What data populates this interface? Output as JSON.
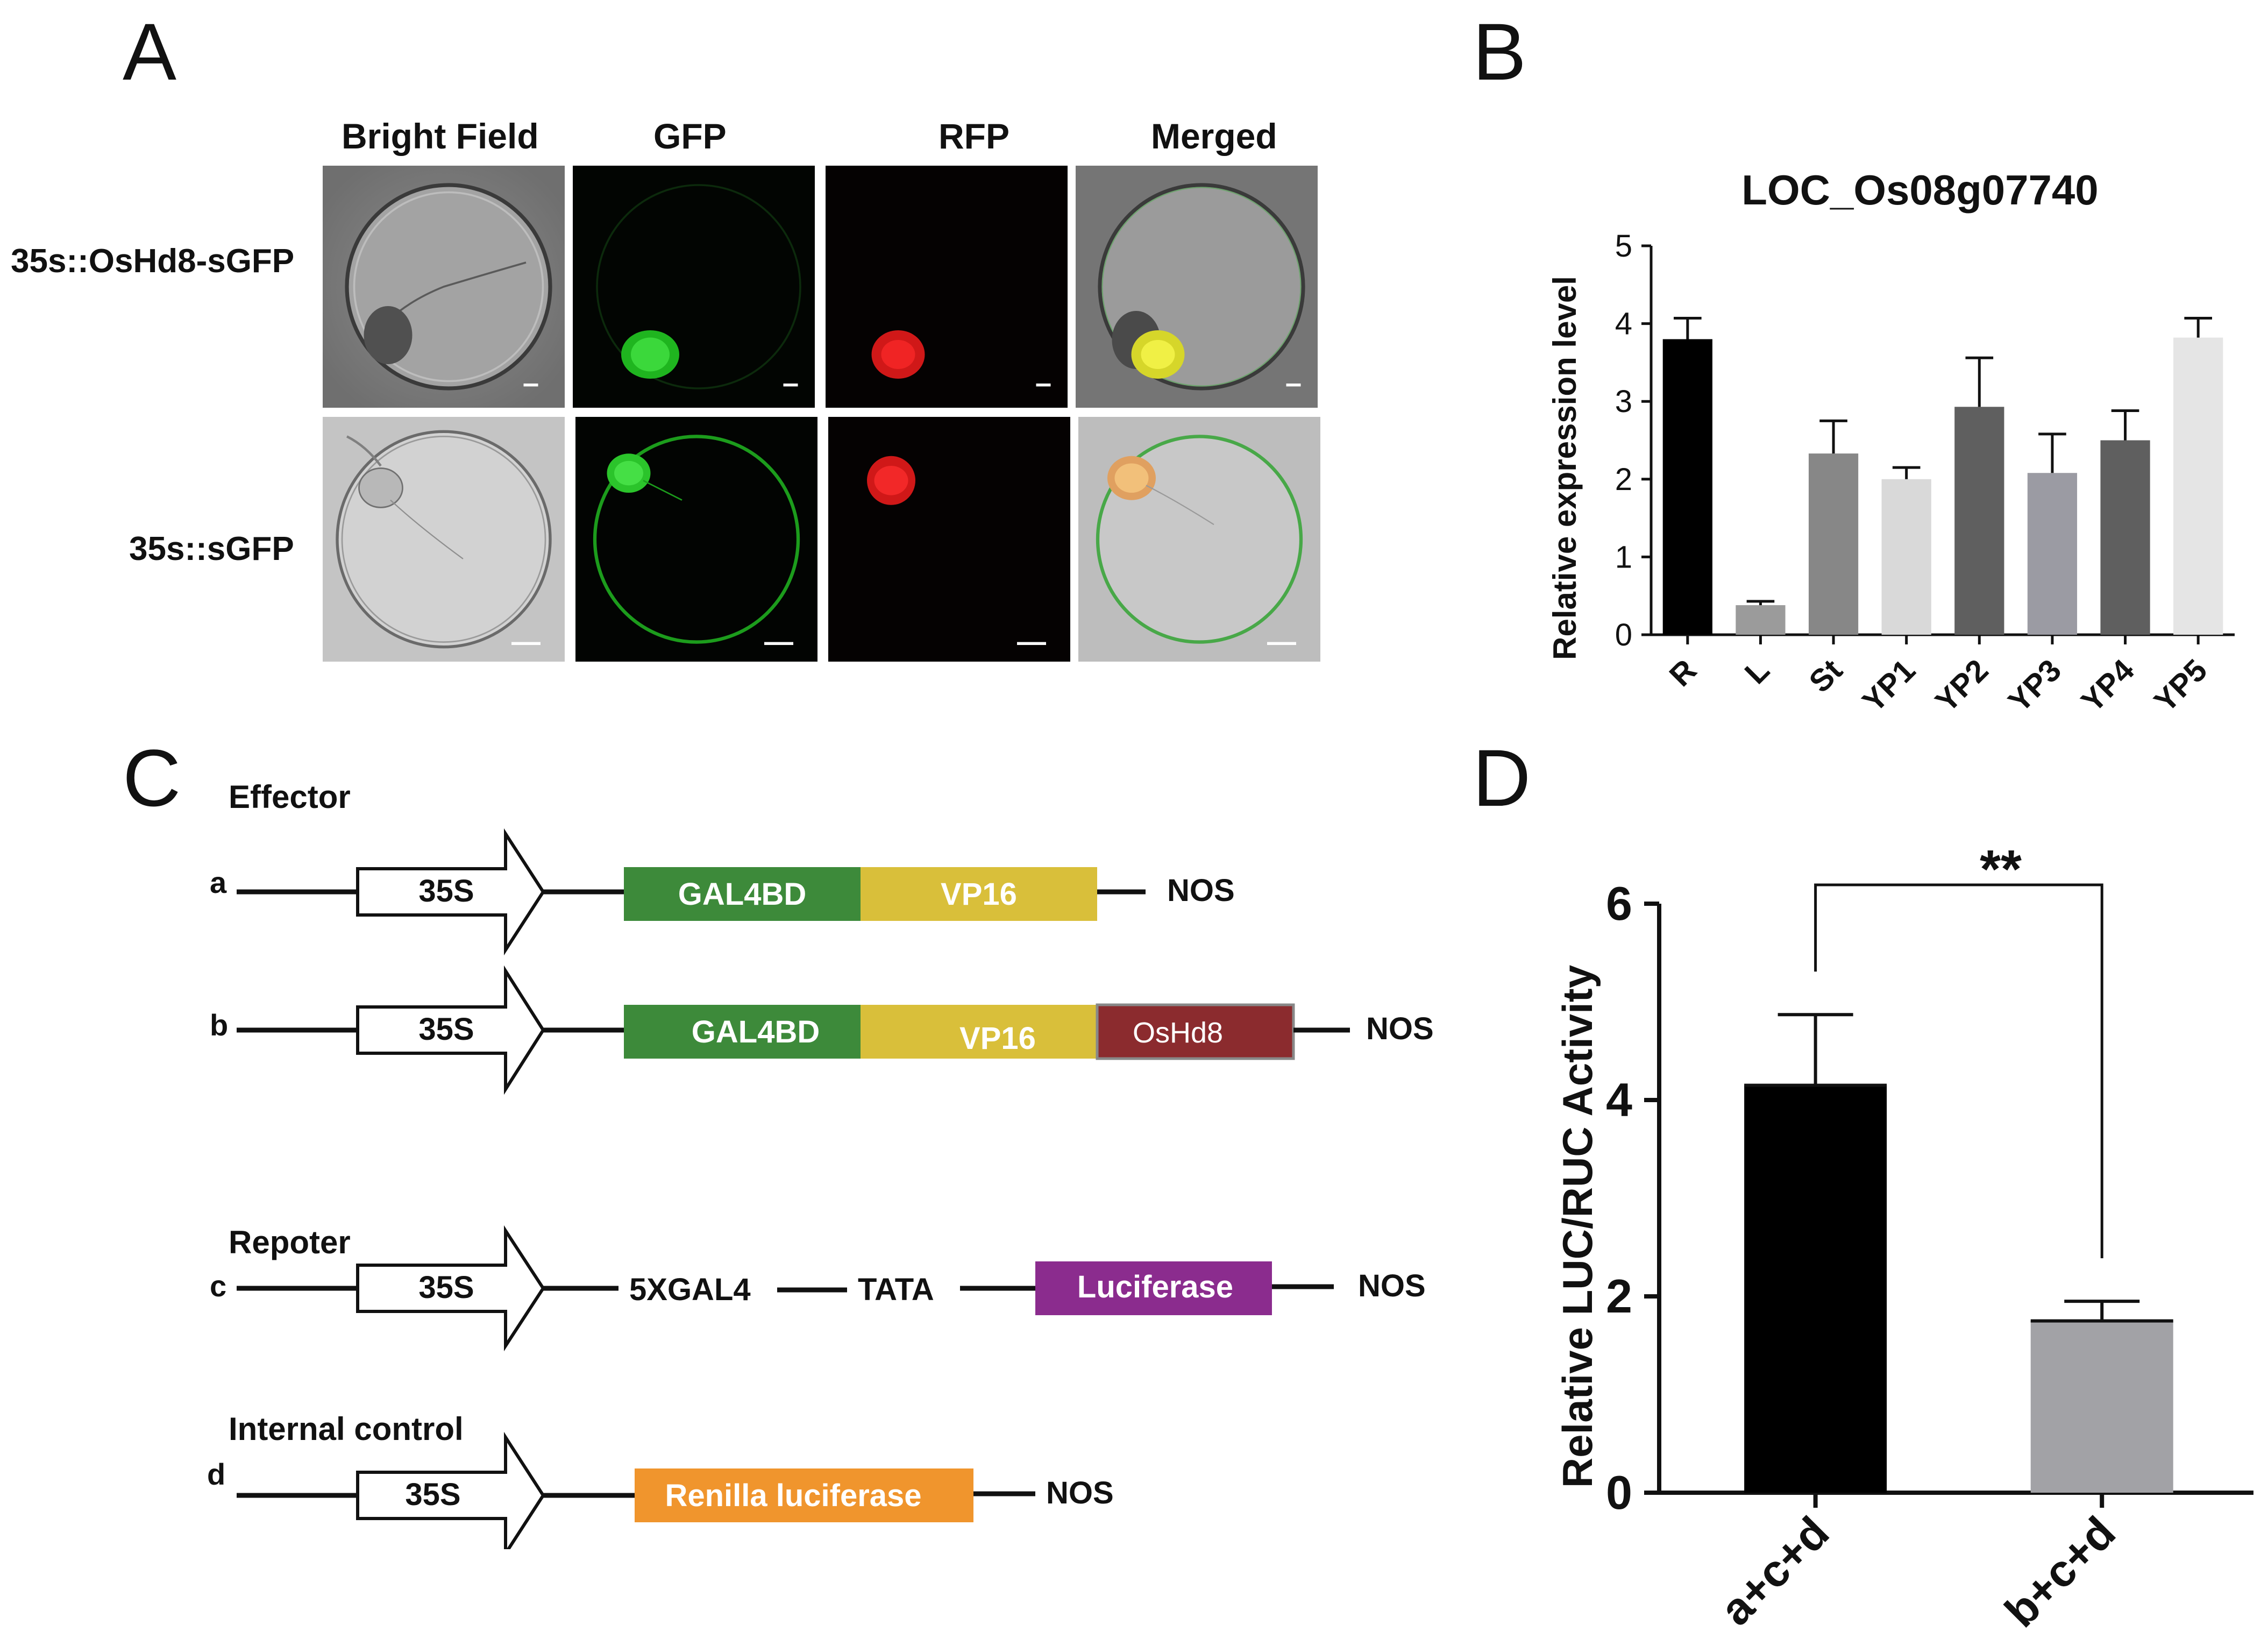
{
  "panels": {
    "a": "A",
    "b": "B",
    "c": "C",
    "d": "D"
  },
  "panelA": {
    "columns": [
      "Bright Field",
      "GFP",
      "RFP",
      "Merged"
    ],
    "rows": [
      "35s::OsHd8-sGFP",
      "35s::sGFP"
    ]
  },
  "panelC": {
    "effector_title": "Effector",
    "reporter_title": "Repoter",
    "control_title": "Internal control",
    "promoter": "35S",
    "terminator": "NOS",
    "row_labels": {
      "a": "a",
      "b": "b",
      "c": "c",
      "d": "d"
    },
    "gal4bd": "GAL4BD",
    "vp16": "VP16",
    "oshd8": "OsHd8",
    "gal4_element": "5XGAL4",
    "tata": "TATA",
    "luciferase": "Luciferase",
    "renilla": "Renilla luciferase",
    "colors": {
      "gal4bd": "#3d8a3a",
      "vp16": "#d9bf3a",
      "oshd8": "#8b2b2e",
      "luciferase": "#8b2c8e",
      "renilla": "#f0952d"
    }
  },
  "chart_data": [
    {
      "type": "bar",
      "title": "LOC_Os08g07740",
      "xlabel": "",
      "ylabel": "Relative expression level",
      "ylim": [
        0,
        5
      ],
      "yticks": [
        0,
        1,
        2,
        3,
        4,
        5
      ],
      "categories": [
        "R",
        "L",
        "St",
        "YP1",
        "YP2",
        "YP3",
        "YP4",
        "YP5"
      ],
      "values": [
        3.8,
        0.38,
        2.33,
        2.0,
        2.93,
        2.08,
        2.5,
        3.82
      ],
      "errors": [
        0.27,
        0.05,
        0.42,
        0.15,
        0.63,
        0.5,
        0.38,
        0.25
      ],
      "colors": [
        "#000000",
        "#9b9b9b",
        "#878787",
        "#d9d9d9",
        "#5f5f5f",
        "#9b9ba3",
        "#5f5f5f",
        "#e5e5e5"
      ]
    },
    {
      "type": "bar",
      "title": "",
      "xlabel": "",
      "ylabel": "Relative LUC/RUC Activity",
      "ylim": [
        0,
        6
      ],
      "yticks": [
        0,
        2,
        4,
        6
      ],
      "categories": [
        "a+c+d",
        "b+c+d"
      ],
      "values": [
        4.15,
        1.75
      ],
      "errors": [
        0.72,
        0.2
      ],
      "colors": [
        "#000000",
        "#a2a2a6"
      ],
      "significance": "**"
    }
  ]
}
